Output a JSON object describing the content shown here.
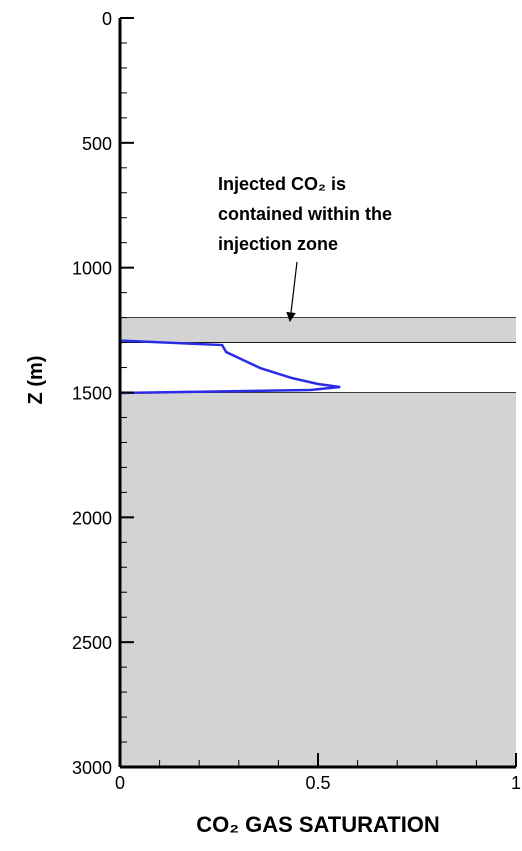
{
  "chart_data": {
    "type": "line",
    "xlabel": "CO₂ GAS SATURATION",
    "ylabel": "Z (m)",
    "annotation": {
      "lines": [
        "Injected CO₂ is",
        "contained within the",
        "injection zone"
      ]
    },
    "x": [
      0,
      0,
      0.258,
      0.268,
      0.354,
      0.434,
      0.5,
      0.556,
      0.48,
      0,
      0
    ],
    "y": [
      0,
      1292,
      1310,
      1338,
      1402,
      1442,
      1466,
      1478,
      1490,
      1502,
      3000
    ],
    "color": "#2b2be6",
    "xlim": [
      0,
      1
    ],
    "xticks": [
      0,
      0.5,
      1
    ],
    "xminorticks": [
      0.1,
      0.2,
      0.3,
      0.4,
      0.6,
      0.7,
      0.8,
      0.9
    ],
    "ylim": [
      0,
      3000
    ],
    "yticks": [
      0,
      500,
      1000,
      1500,
      2000,
      2500,
      3000
    ],
    "yminorticks": [
      100,
      200,
      300,
      400,
      600,
      700,
      800,
      900,
      1100,
      1200,
      1300,
      1400,
      1600,
      1700,
      1800,
      1900,
      2100,
      2200,
      2300,
      2400,
      2600,
      2700,
      2800,
      2900
    ],
    "y_inverted": true,
    "bands": [
      {
        "from": 1200,
        "to": 1300
      },
      {
        "from": 1500,
        "to": 3000
      }
    ],
    "band_color": "#d3d3d3"
  }
}
